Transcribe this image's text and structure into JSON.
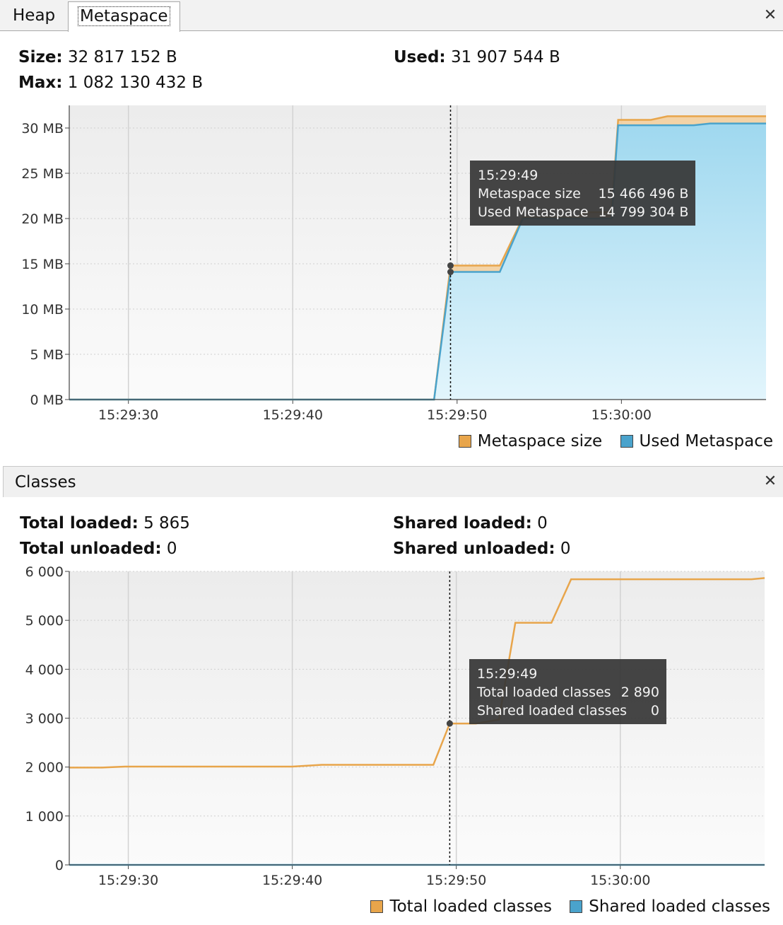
{
  "tabs": [
    {
      "label": "Heap"
    },
    {
      "label": "Metaspace"
    }
  ],
  "metaspace": {
    "stats": {
      "size_label": "Size:",
      "size_value": "32 817 152 B",
      "max_label": "Max:",
      "max_value": "1 082 130 432 B",
      "used_label": "Used:",
      "used_value": "31 907 544 B"
    },
    "tooltip": {
      "time": "15:29:49",
      "rows": [
        {
          "label": "Metaspace size",
          "value": "15 466 496 B"
        },
        {
          "label": "Used Metaspace",
          "value": "14 799 304 B"
        }
      ]
    },
    "legend": [
      "Metaspace size",
      "Used Metaspace"
    ]
  },
  "classes": {
    "title": "Classes",
    "stats": {
      "total_loaded_label": "Total loaded:",
      "total_loaded_value": "5 865",
      "total_unloaded_label": "Total unloaded:",
      "total_unloaded_value": "0",
      "shared_loaded_label": "Shared loaded:",
      "shared_loaded_value": "0",
      "shared_unloaded_label": "Shared unloaded:",
      "shared_unloaded_value": "0"
    },
    "tooltip": {
      "time": "15:29:49",
      "rows": [
        {
          "label": "Total loaded classes",
          "value": "2 890"
        },
        {
          "label": "Shared loaded classes",
          "value": "0"
        }
      ]
    },
    "legend": [
      "Total loaded classes",
      "Shared loaded classes"
    ]
  },
  "colors": {
    "orange": "#e8a54b",
    "blue": "#4aa3cc",
    "blue_fill": "#aadcf0",
    "orange_fill": "#f3cf9e"
  },
  "chart_data": [
    {
      "type": "area",
      "title": "",
      "x_ticks": [
        "15:29:30",
        "15:29:40",
        "15:29:50",
        "15:30:00"
      ],
      "y_ticks": [
        "0 MB",
        "5 MB",
        "10 MB",
        "15 MB",
        "20 MB",
        "25 MB",
        "30 MB"
      ],
      "ylim": [
        0,
        32.5
      ],
      "x_unit": "seconds",
      "xlim": [
        "15:29:26.4",
        "15:30:08.8"
      ],
      "marker": "15:29:49.6",
      "series": [
        {
          "name": "Metaspace size",
          "points": [
            [
              "15:29:26.4",
              0
            ],
            [
              "15:29:48.6",
              0
            ],
            [
              "15:29:49.6",
              14.8
            ],
            [
              "15:29:52.6",
              14.8
            ],
            [
              "15:29:54.0",
              20.1
            ],
            [
              "15:29:57.3",
              20.1
            ],
            [
              "15:29:57.8",
              20.7
            ],
            [
              "15:29:59.4",
              20.7
            ],
            [
              "15:29:59.8",
              30.9
            ],
            [
              "15:30:01.8",
              30.9
            ],
            [
              "15:30:02.8",
              31.3
            ],
            [
              "15:30:08.8",
              31.3
            ]
          ]
        },
        {
          "name": "Used Metaspace",
          "points": [
            [
              "15:29:26.4",
              0
            ],
            [
              "15:29:48.6",
              0
            ],
            [
              "15:29:49.6",
              14.1
            ],
            [
              "15:29:52.6",
              14.1
            ],
            [
              "15:29:54.0",
              20.0
            ],
            [
              "15:29:57.3",
              20.0
            ],
            [
              "15:29:57.8",
              20.0
            ],
            [
              "15:29:59.4",
              20.0
            ],
            [
              "15:29:59.8",
              30.3
            ],
            [
              "15:30:04.4",
              30.3
            ],
            [
              "15:30:05.4",
              30.5
            ],
            [
              "15:30:08.8",
              30.5
            ]
          ]
        }
      ]
    },
    {
      "type": "line",
      "title": "",
      "x_ticks": [
        "15:29:30",
        "15:29:40",
        "15:29:50",
        "15:30:00"
      ],
      "y_ticks": [
        "0",
        "1 000",
        "2 000",
        "3 000",
        "4 000",
        "5 000",
        "6 000"
      ],
      "ylim": [
        0,
        6000
      ],
      "x_unit": "seconds",
      "xlim": [
        "15:29:26.4",
        "15:30:08.8"
      ],
      "marker": "15:29:49.6",
      "series": [
        {
          "name": "Total loaded classes",
          "points": [
            [
              "15:29:26.4",
              1990
            ],
            [
              "15:29:28.4",
              1990
            ],
            [
              "15:29:29.8",
              2010
            ],
            [
              "15:29:40.0",
              2010
            ],
            [
              "15:29:41.8",
              2045
            ],
            [
              "15:29:48.6",
              2045
            ],
            [
              "15:29:49.6",
              2890
            ],
            [
              "15:29:51.2",
              2890
            ],
            [
              "15:29:52.6",
              2970
            ],
            [
              "15:29:53.6",
              4950
            ],
            [
              "15:29:55.8",
              4950
            ],
            [
              "15:29:57.0",
              5840
            ],
            [
              "15:30:08.0",
              5840
            ],
            [
              "15:30:08.8",
              5865
            ]
          ]
        },
        {
          "name": "Shared loaded classes",
          "points": [
            [
              "15:29:26.4",
              0
            ],
            [
              "15:30:08.8",
              0
            ]
          ]
        }
      ]
    }
  ]
}
